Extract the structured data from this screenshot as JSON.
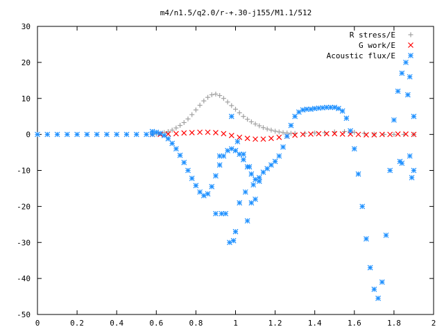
{
  "chart_data": {
    "type": "scatter",
    "title": "m4/n1.5/q2.0/r-+.30-j155/M1.1/512",
    "xlabel": "",
    "ylabel": "",
    "xlim": [
      0,
      2
    ],
    "ylim": [
      -50,
      30
    ],
    "x_ticks": [
      0,
      0.2,
      0.4,
      0.6,
      0.8,
      1,
      1.2,
      1.4,
      1.6,
      1.8,
      2
    ],
    "x_tick_labels": [
      "0",
      "0.2",
      "0.4",
      "0.6",
      "0.8",
      "1",
      "1.2",
      "1.4",
      "1.6",
      "1.8",
      "2"
    ],
    "y_ticks": [
      -50,
      -40,
      -30,
      -20,
      -10,
      0,
      10,
      20,
      30
    ],
    "y_tick_labels": [
      "-50",
      "-40",
      "-30",
      "-20",
      "-10",
      "0",
      "10",
      "20",
      "30"
    ],
    "grid": false,
    "legend_position": "top-right",
    "series": [
      {
        "name": "R stress/E",
        "marker": "plus",
        "color": "#a0a0a0",
        "x": [
          0.58,
          0.6,
          0.62,
          0.64,
          0.66,
          0.68,
          0.7,
          0.72,
          0.74,
          0.76,
          0.78,
          0.8,
          0.82,
          0.84,
          0.86,
          0.88,
          0.9,
          0.92,
          0.94,
          0.96,
          0.98,
          1.0,
          1.02,
          1.04,
          1.06,
          1.08,
          1.1,
          1.12,
          1.14,
          1.16,
          1.18,
          1.2,
          1.22,
          1.24,
          1.26,
          1.28,
          1.3,
          1.35,
          1.4,
          1.45,
          1.5,
          1.55,
          1.6,
          1.65,
          1.7,
          1.75,
          1.8,
          1.85,
          1.9
        ],
        "y": [
          0.0,
          0.1,
          0.2,
          0.5,
          0.8,
          1.2,
          1.8,
          2.5,
          3.3,
          4.3,
          5.5,
          6.8,
          8.1,
          9.3,
          10.3,
          11.0,
          11.2,
          10.8,
          10.0,
          9.0,
          8.0,
          7.0,
          6.0,
          5.0,
          4.2,
          3.5,
          2.9,
          2.4,
          1.9,
          1.5,
          1.2,
          0.9,
          0.7,
          0.5,
          0.4,
          0.3,
          0.3,
          0.3,
          0.4,
          0.5,
          0.7,
          0.8,
          0.6,
          0.3,
          0.1,
          0.0,
          0.0,
          0.0,
          0.0
        ]
      },
      {
        "name": "G work/E",
        "marker": "cross",
        "color": "#ff0000",
        "x": [
          0.58,
          0.62,
          0.66,
          0.7,
          0.74,
          0.78,
          0.82,
          0.86,
          0.9,
          0.94,
          0.98,
          1.02,
          1.06,
          1.1,
          1.14,
          1.18,
          1.22,
          1.26,
          1.3,
          1.34,
          1.38,
          1.42,
          1.46,
          1.5,
          1.54,
          1.58,
          1.62,
          1.66,
          1.7,
          1.74,
          1.78,
          1.82,
          1.86,
          1.9
        ],
        "y": [
          0.0,
          0.0,
          0.1,
          0.2,
          0.4,
          0.5,
          0.6,
          0.6,
          0.5,
          0.2,
          -0.3,
          -0.8,
          -1.1,
          -1.3,
          -1.3,
          -1.1,
          -0.8,
          -0.5,
          -0.2,
          0.0,
          0.1,
          0.2,
          0.2,
          0.2,
          0.1,
          0.1,
          0.0,
          -0.1,
          -0.1,
          0.0,
          0.0,
          0.1,
          0.1,
          0.0
        ]
      },
      {
        "name": "Acoustic flux/E",
        "marker": "asterisk",
        "color": "#1e90ff",
        "x": [
          0.58,
          0.6,
          0.62,
          0.64,
          0.66,
          0.68,
          0.7,
          0.72,
          0.74,
          0.76,
          0.78,
          0.8,
          0.82,
          0.84,
          0.86,
          0.88,
          0.9,
          0.92,
          0.94,
          0.96,
          0.98,
          1.0,
          1.02,
          1.04,
          1.06,
          1.08,
          1.1,
          1.12,
          1.14,
          1.16,
          1.18,
          1.2,
          1.22,
          1.24,
          1.26,
          1.28,
          1.3,
          1.32,
          1.34,
          1.36,
          1.38,
          1.4,
          1.42,
          1.44,
          1.46,
          1.48,
          1.5,
          1.52,
          1.54,
          1.56,
          1.58,
          1.6,
          1.62,
          1.64,
          1.66,
          1.68,
          1.7,
          1.72,
          1.74,
          1.76,
          1.78,
          1.8,
          1.82,
          1.84,
          1.86,
          1.88,
          1.9,
          0.9,
          0.92,
          0.93,
          0.95,
          0.97,
          0.98,
          0.99,
          1.0,
          1.01,
          1.02,
          1.04,
          1.05,
          1.06,
          1.07,
          1.08,
          1.09,
          1.1,
          1.12,
          1.83,
          1.84,
          1.87,
          1.88,
          1.89,
          1.9
        ],
        "y": [
          0.8,
          0.6,
          0.3,
          -0.3,
          -1.2,
          -2.5,
          -4.0,
          -5.8,
          -7.8,
          -10.0,
          -12.2,
          -14.2,
          -16.0,
          -17.0,
          -16.5,
          -14.5,
          -11.5,
          -8.5,
          -6.0,
          -4.5,
          -4.0,
          -4.5,
          -5.5,
          -7.0,
          -9.0,
          -11.0,
          -12.5,
          -12.0,
          -10.5,
          -9.5,
          -8.5,
          -7.5,
          -6.0,
          -3.5,
          -0.5,
          2.5,
          5.0,
          6.2,
          6.8,
          7.0,
          7.0,
          7.2,
          7.3,
          7.4,
          7.5,
          7.5,
          7.5,
          7.2,
          6.5,
          4.5,
          1.0,
          -4.0,
          -11.0,
          -20.0,
          -29.0,
          -37.0,
          -43.0,
          -45.5,
          -41.0,
          -28.0,
          -10.0,
          4.0,
          12.0,
          17.0,
          20.0,
          16.0,
          5.0,
          -22.0,
          -6.0,
          -22.0,
          -22.0,
          -30.0,
          5.0,
          -29.5,
          -27.0,
          -2.0,
          -19.0,
          -5.5,
          -16.0,
          -24.0,
          -9.0,
          -19.0,
          -14.0,
          -18.0,
          -13.0,
          -7.5,
          -8.0,
          11.0,
          -6.0,
          -12.0,
          -10.0
        ]
      },
      {
        "name": "",
        "marker": "asterisk",
        "color": "#1e90ff",
        "x": [
          0.0,
          0.05,
          0.1,
          0.15,
          0.2,
          0.25,
          0.3,
          0.35,
          0.4,
          0.45,
          0.5,
          0.55,
          0.58
        ],
        "y": [
          0,
          0,
          0,
          0,
          0,
          0,
          0,
          0,
          0,
          0,
          0,
          0,
          0
        ]
      }
    ]
  }
}
